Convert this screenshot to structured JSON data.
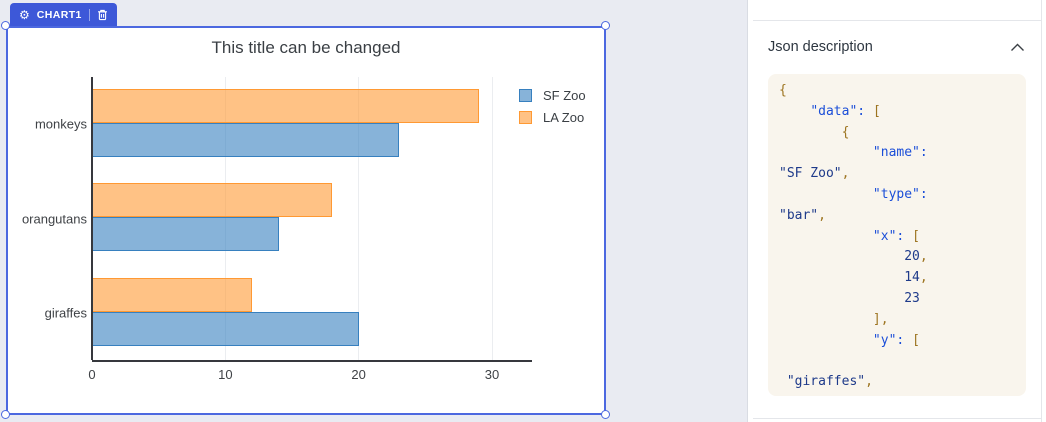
{
  "canvas": {
    "badge": {
      "label": "CHART1",
      "color": "#3d58d8",
      "icons": [
        "gear-icon",
        "trash-icon"
      ]
    },
    "selection_border_color": "#4c68e0"
  },
  "chart_data": {
    "type": "bar",
    "orientation": "horizontal",
    "title": "This title can be changed",
    "categories": [
      "monkeys",
      "orangutans",
      "giraffes"
    ],
    "series": [
      {
        "name": "SF Zoo",
        "fill": "rgba(55,128,191,0.6)",
        "border": "#3780bf",
        "values": [
          23,
          14,
          20
        ]
      },
      {
        "name": "LA Zoo",
        "fill": "rgba(255,153,51,0.6)",
        "border": "#ff9933",
        "values": [
          29,
          18,
          12
        ]
      }
    ],
    "xticks": [
      0,
      10,
      20,
      30
    ],
    "xlim": [
      0,
      33
    ],
    "grid": true,
    "legend_position": "top-right",
    "xlabel": "",
    "ylabel": ""
  },
  "panel": {
    "title": "Json description",
    "collapse_icon": "chevron-up-icon",
    "code": {
      "background": "#f9f5ed",
      "lines": [
        [
          [
            "p",
            "{"
          ]
        ],
        [
          [
            "s",
            "    "
          ],
          [
            "k",
            "\"data\":"
          ],
          [
            "s",
            " "
          ],
          [
            "p",
            "["
          ]
        ],
        [
          [
            "s",
            "        "
          ],
          [
            "p",
            "{"
          ]
        ],
        [
          [
            "s",
            "            "
          ],
          [
            "k",
            "\"name\":"
          ]
        ],
        [
          [
            "v",
            "\"SF Zoo\""
          ],
          [
            "p",
            ","
          ]
        ],
        [
          [
            "s",
            "            "
          ],
          [
            "k",
            "\"type\":"
          ]
        ],
        [
          [
            "v",
            "\"bar\""
          ],
          [
            "p",
            ","
          ]
        ],
        [
          [
            "s",
            "            "
          ],
          [
            "k",
            "\"x\":"
          ],
          [
            "s",
            " "
          ],
          [
            "p",
            "["
          ]
        ],
        [
          [
            "s",
            "                "
          ],
          [
            "v",
            "20"
          ],
          [
            "p",
            ","
          ]
        ],
        [
          [
            "s",
            "                "
          ],
          [
            "v",
            "14"
          ],
          [
            "p",
            ","
          ]
        ],
        [
          [
            "s",
            "                "
          ],
          [
            "v",
            "23"
          ]
        ],
        [
          [
            "s",
            "            "
          ],
          [
            "p",
            "],"
          ]
        ],
        [
          [
            "s",
            "            "
          ],
          [
            "k",
            "\"y\":"
          ],
          [
            "s",
            " "
          ],
          [
            "p",
            "["
          ]
        ],
        [
          [
            "s",
            ""
          ]
        ],
        [
          [
            "s",
            " "
          ],
          [
            "v",
            "\"giraffes\""
          ],
          [
            "p",
            ","
          ]
        ]
      ]
    }
  }
}
